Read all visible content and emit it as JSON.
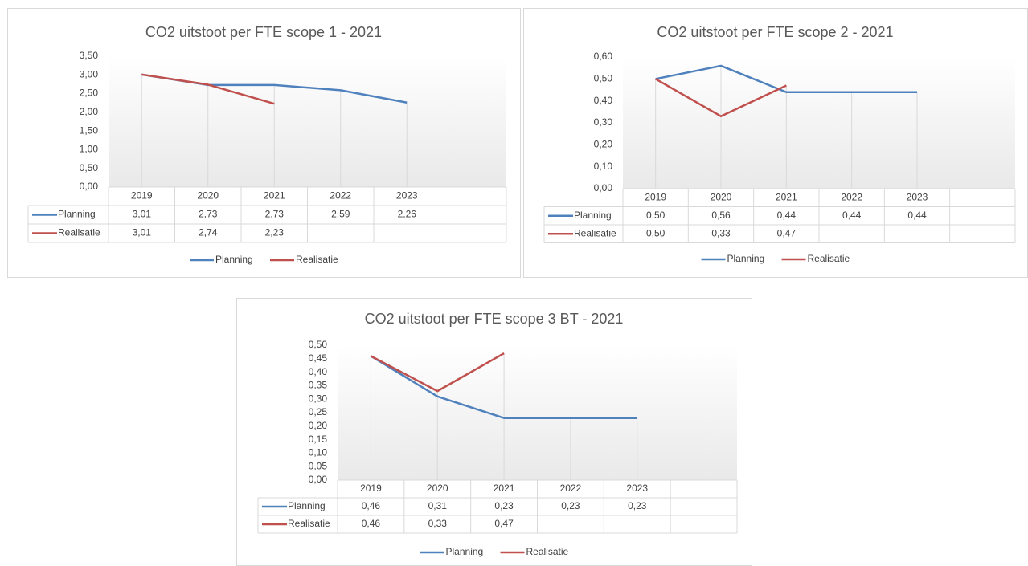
{
  "chart_data": [
    {
      "type": "line",
      "title": "CO2 uitstoot per FTE scope 1 - 2021",
      "categories": [
        "2019",
        "2020",
        "2021",
        "2022",
        "2023",
        null
      ],
      "series": [
        {
          "name": "Planning",
          "color": "#4f81bd",
          "values": [
            3.01,
            2.73,
            2.73,
            2.59,
            2.26,
            null
          ],
          "value_labels": [
            "3,01",
            "2,73",
            "2,73",
            "2,59",
            "2,26",
            null
          ]
        },
        {
          "name": "Realisatie",
          "color": "#c0504d",
          "values": [
            3.01,
            2.74,
            2.23,
            null,
            null,
            null
          ],
          "value_labels": [
            "3,01",
            "2,74",
            "2,23",
            null,
            null,
            null
          ]
        }
      ],
      "ylim": [
        0,
        3.5
      ],
      "yticks": [
        {
          "value": 0,
          "label": "0,00"
        },
        {
          "value": 0.5,
          "label": "0,50"
        },
        {
          "value": 1,
          "label": "1,00"
        },
        {
          "value": 1.5,
          "label": "1,50"
        },
        {
          "value": 2,
          "label": "2,00"
        },
        {
          "value": 2.5,
          "label": "2,50"
        },
        {
          "value": 3,
          "label": "3,00"
        },
        {
          "value": 3.5,
          "label": "3,50"
        }
      ]
    },
    {
      "type": "line",
      "title": "CO2 uitstoot per FTE scope 2 - 2021",
      "categories": [
        "2019",
        "2020",
        "2021",
        "2022",
        "2023",
        null
      ],
      "series": [
        {
          "name": "Planning",
          "color": "#4f81bd",
          "values": [
            0.5,
            0.56,
            0.44,
            0.44,
            0.44,
            null
          ],
          "value_labels": [
            "0,50",
            "0,56",
            "0,44",
            "0,44",
            "0,44",
            null
          ]
        },
        {
          "name": "Realisatie",
          "color": "#c0504d",
          "values": [
            0.5,
            0.33,
            0.47,
            null,
            null,
            null
          ],
          "value_labels": [
            "0,50",
            "0,33",
            "0,47",
            null,
            null,
            null
          ]
        }
      ],
      "ylim": [
        0,
        0.6
      ],
      "yticks": [
        {
          "value": 0,
          "label": "0,00"
        },
        {
          "value": 0.1,
          "label": "0,10"
        },
        {
          "value": 0.2,
          "label": "0,20"
        },
        {
          "value": 0.3,
          "label": "0,30"
        },
        {
          "value": 0.4,
          "label": "0,40"
        },
        {
          "value": 0.5,
          "label": "0,50"
        },
        {
          "value": 0.6,
          "label": "0,60"
        }
      ]
    },
    {
      "type": "line",
      "title": "CO2 uitstoot per FTE scope 3 BT - 2021",
      "categories": [
        "2019",
        "2020",
        "2021",
        "2022",
        "2023",
        null
      ],
      "series": [
        {
          "name": "Planning",
          "color": "#4f81bd",
          "values": [
            0.46,
            0.31,
            0.23,
            0.23,
            0.23,
            null
          ],
          "value_labels": [
            "0,46",
            "0,31",
            "0,23",
            "0,23",
            "0,23",
            null
          ]
        },
        {
          "name": "Realisatie",
          "color": "#c0504d",
          "values": [
            0.46,
            0.33,
            0.47,
            null,
            null,
            null
          ],
          "value_labels": [
            "0,46",
            "0,33",
            "0,47",
            null,
            null,
            null
          ]
        }
      ],
      "ylim": [
        0,
        0.5
      ],
      "yticks": [
        {
          "value": 0,
          "label": "0,00"
        },
        {
          "value": 0.05,
          "label": "0,05"
        },
        {
          "value": 0.1,
          "label": "0,10"
        },
        {
          "value": 0.15,
          "label": "0,15"
        },
        {
          "value": 0.2,
          "label": "0,20"
        },
        {
          "value": 0.25,
          "label": "0,25"
        },
        {
          "value": 0.3,
          "label": "0,30"
        },
        {
          "value": 0.35,
          "label": "0,35"
        },
        {
          "value": 0.4,
          "label": "0,40"
        },
        {
          "value": 0.45,
          "label": "0,45"
        },
        {
          "value": 0.5,
          "label": "0,50"
        }
      ]
    }
  ]
}
